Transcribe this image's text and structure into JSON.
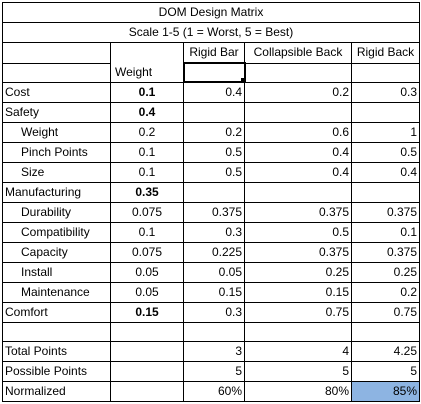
{
  "matrix": {
    "title": "DOM Design Matrix",
    "subtitle": "Scale 1-5 (1 = Worst, 5 = Best)",
    "weight_header": "Weight",
    "columns": [
      "Rigid Bar",
      "Collapsible Back",
      "Rigid Back"
    ],
    "rows": [
      {
        "label": "Cost",
        "weight": "0.1",
        "values": [
          "0.4",
          "0.2",
          "0.3"
        ]
      },
      {
        "label": "Safety",
        "weight": "0.4",
        "values": [
          "",
          "",
          ""
        ]
      },
      {
        "label": "Weight",
        "weight": "0.2",
        "values": [
          "0.2",
          "0.6",
          "1"
        ]
      },
      {
        "label": "Pinch Points",
        "weight": "0.1",
        "values": [
          "0.5",
          "0.4",
          "0.5"
        ]
      },
      {
        "label": "Size",
        "weight": "0.1",
        "values": [
          "0.5",
          "0.4",
          "0.4"
        ]
      },
      {
        "label": "Manufacturing",
        "weight": "0.35",
        "values": [
          "",
          "",
          ""
        ]
      },
      {
        "label": "Durability",
        "weight": "0.075",
        "values": [
          "0.375",
          "0.375",
          "0.375"
        ]
      },
      {
        "label": "Compatibility",
        "weight": "0.1",
        "values": [
          "0.3",
          "0.5",
          "0.1"
        ]
      },
      {
        "label": "Capacity",
        "weight": "0.075",
        "values": [
          "0.225",
          "0.375",
          "0.375"
        ]
      },
      {
        "label": "Install",
        "weight": "0.05",
        "values": [
          "0.05",
          "0.25",
          "0.25"
        ]
      },
      {
        "label": "Maintenance",
        "weight": "0.05",
        "values": [
          "0.15",
          "0.15",
          "0.2"
        ]
      },
      {
        "label": "Comfort",
        "weight": "0.15",
        "values": [
          "0.3",
          "0.75",
          "0.75"
        ]
      }
    ],
    "totals": [
      {
        "label": "Total Points",
        "values": [
          "3",
          "4",
          "4.25"
        ]
      },
      {
        "label": "Possible Points",
        "values": [
          "5",
          "5",
          "5"
        ]
      },
      {
        "label": "Normalized",
        "values": [
          "60%",
          "80%",
          "85%"
        ]
      }
    ],
    "highlight_color": "#8db4e2"
  }
}
